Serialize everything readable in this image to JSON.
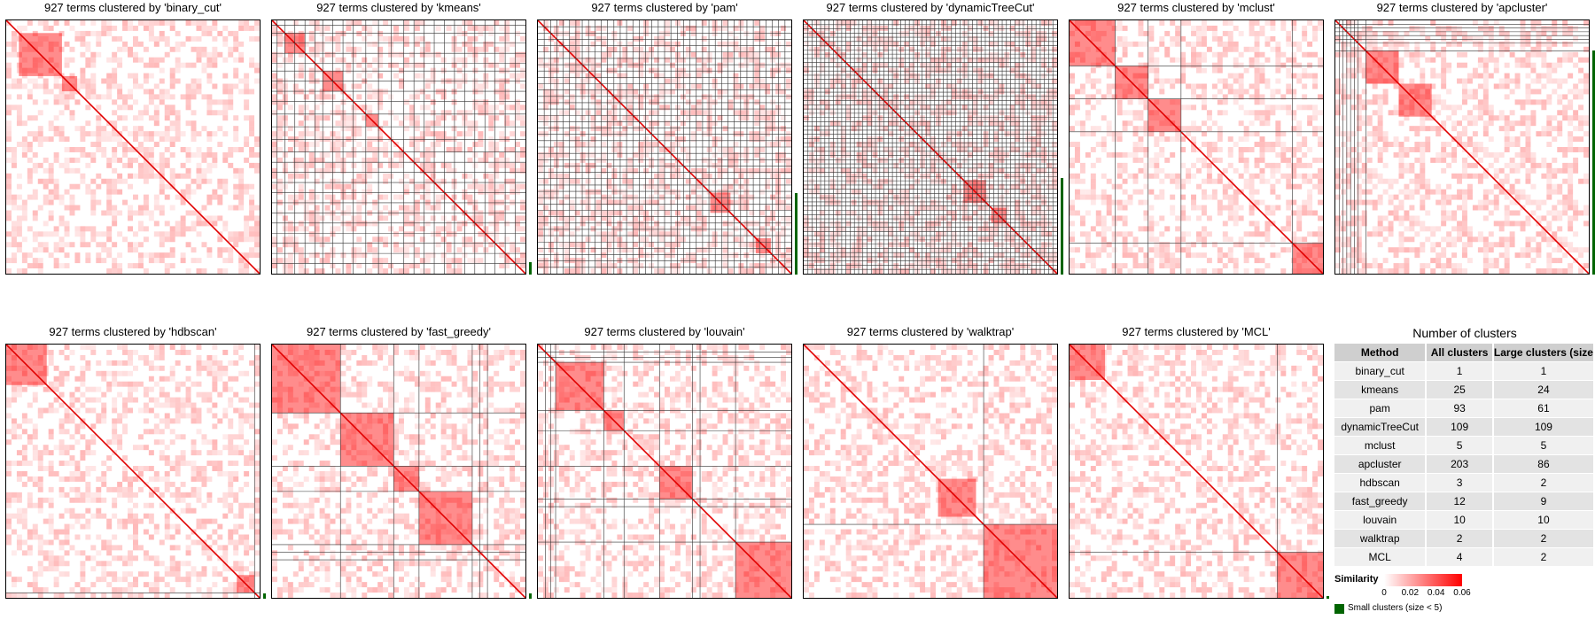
{
  "chart_data": {
    "type": "heatmap",
    "panel_titles": [
      "927 terms clustered by 'binary_cut'",
      "927 terms clustered by 'kmeans'",
      "927 terms clustered by 'pam'",
      "927 terms clustered by 'dynamicTreeCut'",
      "927 terms clustered by 'mclust'",
      "927 terms clustered by 'apcluster'",
      "927 terms clustered by 'hdbscan'",
      "927 terms clustered by 'fast_greedy'",
      "927 terms clustered by 'louvain'",
      "927 terms clustered by 'walktrap'",
      "927 terms clustered by 'MCL'"
    ],
    "n_terms": 927,
    "table": {
      "title": "Number of clusters",
      "columns": [
        "Method",
        "All clusters",
        "Large clusters (size"
      ],
      "rows": [
        [
          "binary_cut",
          "1",
          "1"
        ],
        [
          "kmeans",
          "25",
          "24"
        ],
        [
          "pam",
          "93",
          "61"
        ],
        [
          "dynamicTreeCut",
          "109",
          "109"
        ],
        [
          "mclust",
          "5",
          "5"
        ],
        [
          "apcluster",
          "203",
          "86"
        ],
        [
          "hdbscan",
          "3",
          "2"
        ],
        [
          "fast_greedy",
          "12",
          "9"
        ],
        [
          "louvain",
          "10",
          "10"
        ],
        [
          "walktrap",
          "2",
          "2"
        ],
        [
          "MCL",
          "4",
          "2"
        ]
      ]
    },
    "legend": {
      "similarity_title": "Similarity",
      "similarity_ticks": [
        "0",
        "0.02",
        "0.04",
        "0.06"
      ],
      "similarity_colors": [
        "#ffffff",
        "#ff0000"
      ],
      "small_clusters_label": "Small clusters (size < 5)",
      "small_clusters_color": "#006400"
    }
  }
}
